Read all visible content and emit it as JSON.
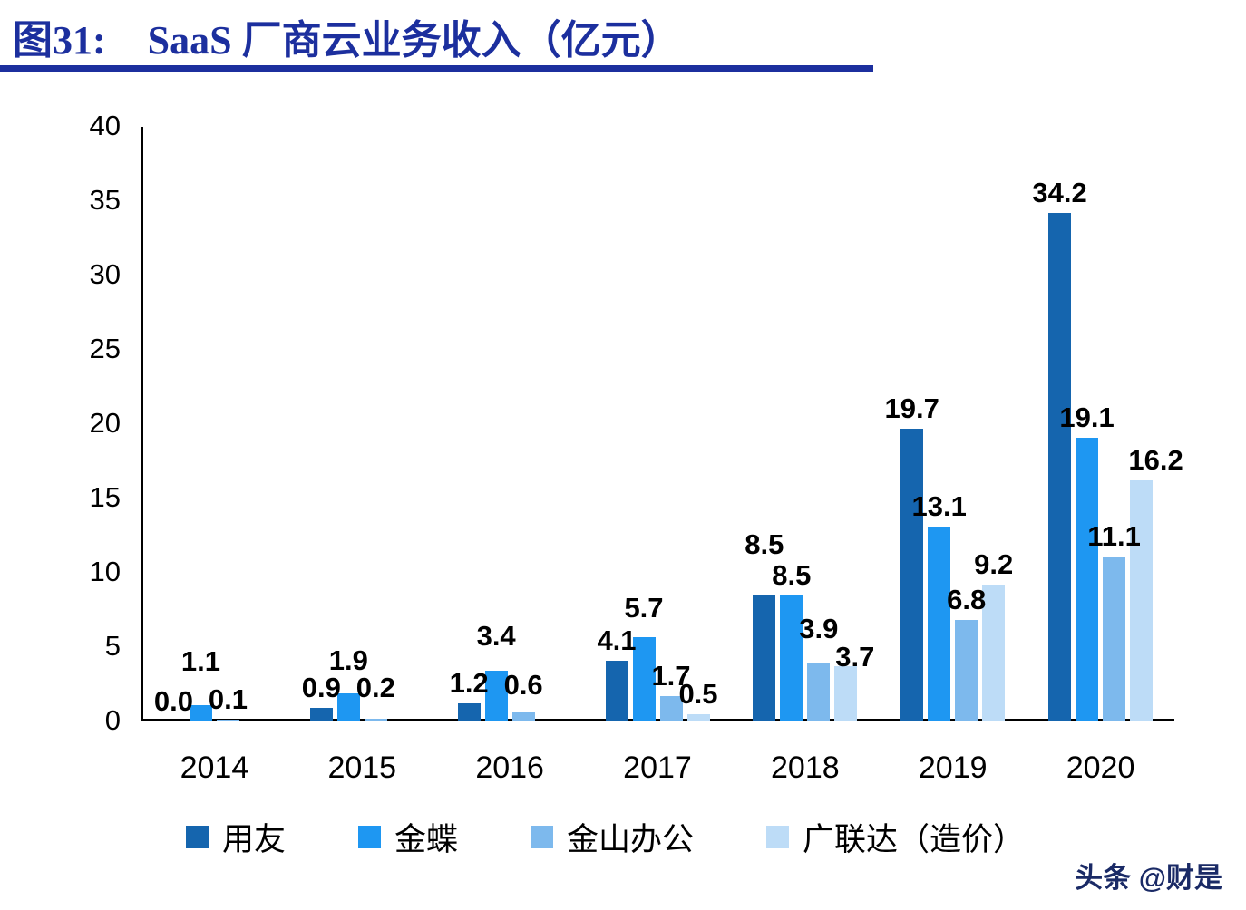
{
  "header": {
    "figure_label": "图31:",
    "title": "SaaS 厂商云业务收入（亿元）"
  },
  "watermark": "头条 @财是",
  "chart_data": {
    "type": "bar",
    "title": "SaaS 厂商云业务收入（亿元）",
    "categories": [
      "2014",
      "2015",
      "2016",
      "2017",
      "2018",
      "2019",
      "2020"
    ],
    "series": [
      {
        "name": "用友",
        "color": "#1565ae",
        "values": [
          0.0,
          0.9,
          1.2,
          4.1,
          8.5,
          19.7,
          34.2
        ]
      },
      {
        "name": "金蝶",
        "color": "#1e97f2",
        "values": [
          1.1,
          1.9,
          3.4,
          5.7,
          8.5,
          13.1,
          19.1
        ]
      },
      {
        "name": "金山办公",
        "color": "#7db9ed",
        "values": [
          0.1,
          0.2,
          0.6,
          1.7,
          3.9,
          6.8,
          11.1
        ]
      },
      {
        "name": "广联达（造价）",
        "color": "#bddcf7",
        "values": [
          null,
          null,
          null,
          0.5,
          3.7,
          9.2,
          16.2
        ]
      }
    ],
    "ylim": [
      0,
      40
    ],
    "yticks": [
      0,
      5,
      10,
      15,
      20,
      25,
      30,
      35,
      40
    ],
    "grid": false,
    "value_labels": true,
    "value_label_decimals": 1,
    "legend_position": "bottom"
  }
}
